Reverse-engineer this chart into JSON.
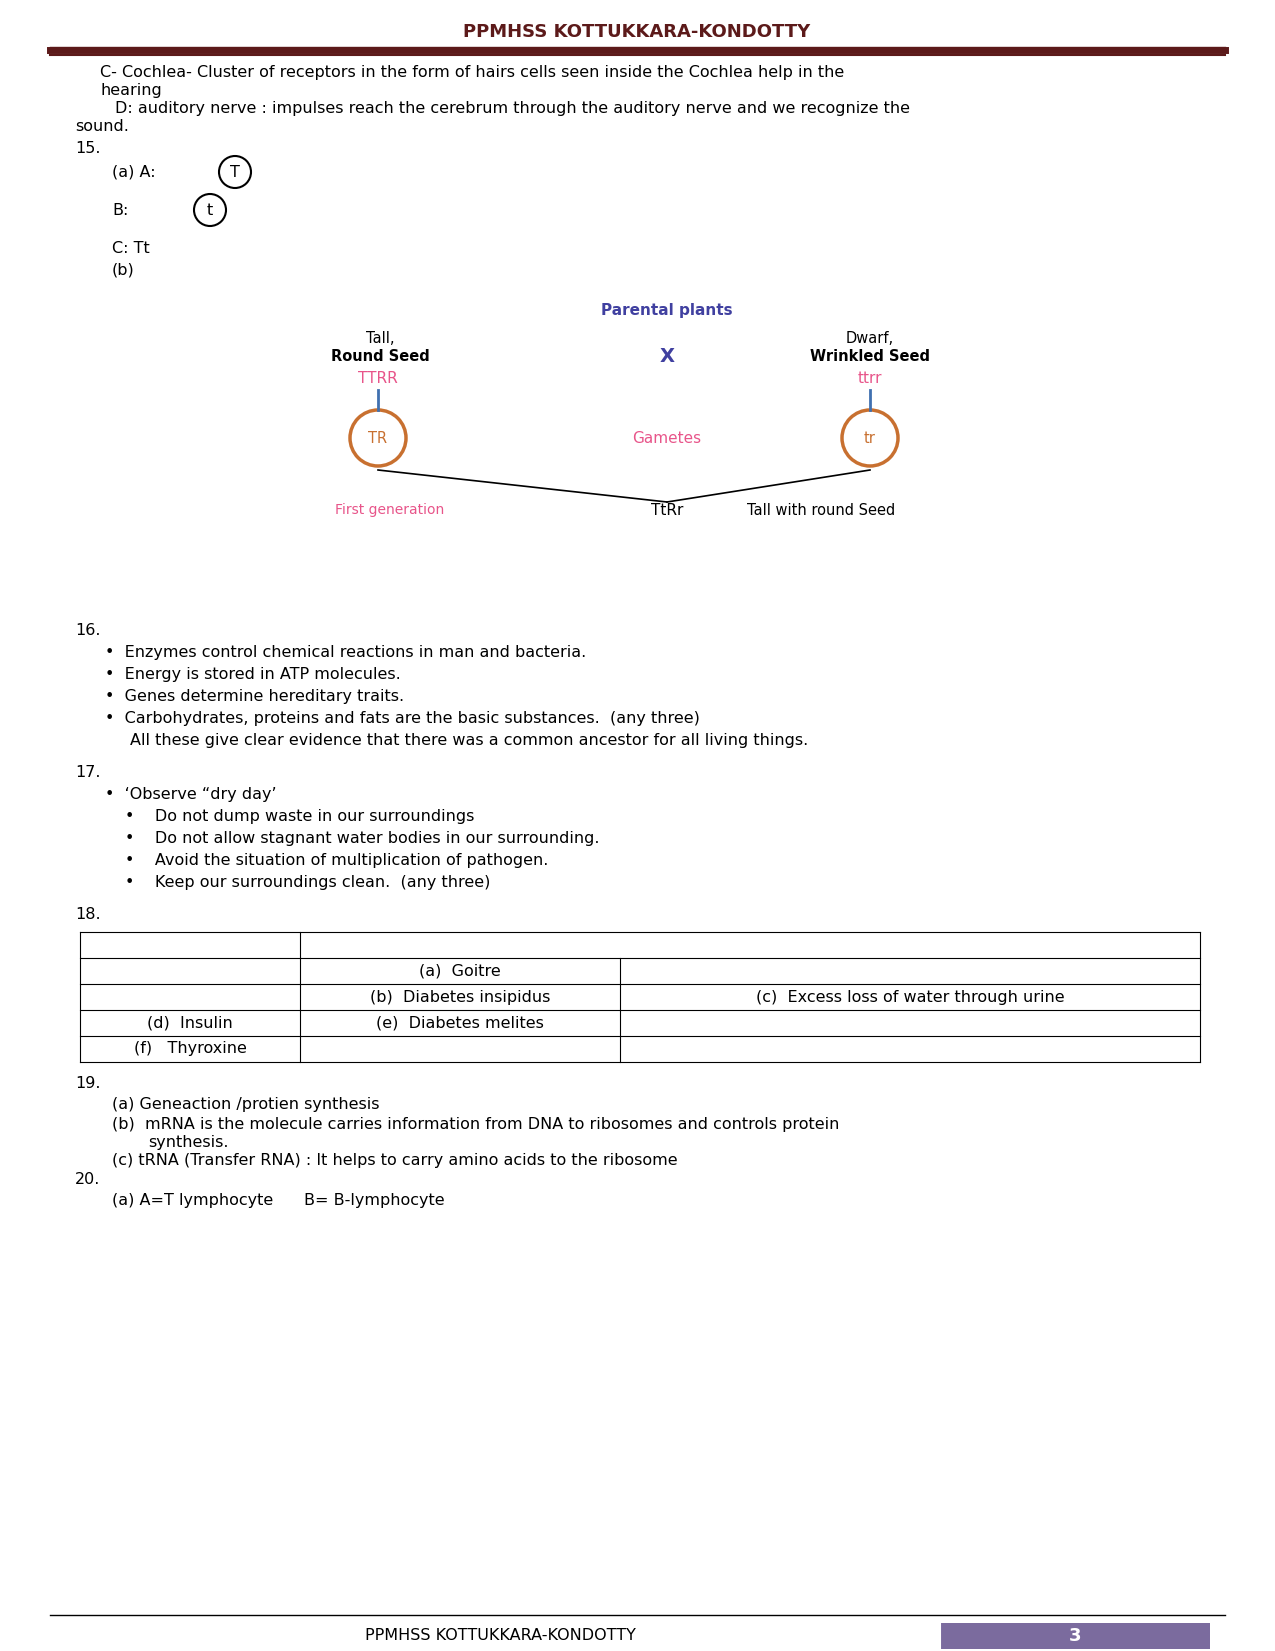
{
  "header_text": "PPMHSS KOTTUKKARA-KONDOTTY",
  "header_color": "#5c1a1a",
  "footer_text": "PPMHSS KOTTUKKARA-KONDOTTY",
  "footer_page": "3",
  "footer_bg": "#7b6b9e",
  "line_color": "#5c1a1a",
  "background": "#ffffff",
  "text_color": "#000000",
  "pink": "#e8558a",
  "blue_purple": "#4040a0",
  "orange": "#c87030",
  "blue_line": "#4070b0"
}
